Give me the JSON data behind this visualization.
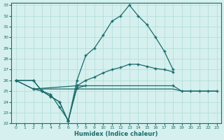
{
  "xlabel": "Humidex (Indice chaleur)",
  "xlim": [
    -0.5,
    23.5
  ],
  "ylim": [
    22,
    33.2
  ],
  "yticks": [
    22,
    23,
    24,
    25,
    26,
    27,
    28,
    29,
    30,
    31,
    32,
    33
  ],
  "xticks": [
    0,
    1,
    2,
    3,
    4,
    5,
    6,
    7,
    8,
    9,
    10,
    11,
    12,
    13,
    14,
    15,
    16,
    17,
    18,
    19,
    20,
    21,
    22,
    23
  ],
  "bg_color": "#d5f0ee",
  "grid_color": "#b0dbd8",
  "line_color": "#1a6b6b",
  "series_peak_x": [
    0,
    2,
    3,
    4,
    5,
    6,
    7,
    8,
    9,
    10,
    11,
    12,
    13,
    14,
    15,
    16,
    17,
    18
  ],
  "series_peak_y": [
    26,
    26,
    25,
    24.5,
    24,
    22.2,
    26,
    28.3,
    29,
    30.2,
    31.5,
    32,
    33,
    32,
    31.2,
    30,
    28.7,
    27
  ],
  "series_mid_x": [
    0,
    2,
    3,
    4,
    5,
    6,
    7,
    8,
    9,
    10,
    11,
    12,
    13,
    14,
    15,
    16,
    17,
    18
  ],
  "series_mid_y": [
    26,
    26,
    25,
    24.5,
    24,
    22.2,
    25.5,
    26,
    26.3,
    26.7,
    27,
    27.2,
    27.5,
    27.5,
    27.3,
    27.1,
    27,
    26.8
  ],
  "series_dip_x": [
    2,
    3,
    4,
    5,
    6,
    7,
    8
  ],
  "series_dip_y": [
    25.2,
    25,
    24.7,
    23.5,
    22.3,
    25.3,
    25.5
  ],
  "series_flat1_x": [
    0,
    2,
    18,
    19,
    20,
    21,
    22,
    23
  ],
  "series_flat1_y": [
    26,
    25.2,
    25.2,
    25,
    25,
    25,
    25,
    25
  ],
  "series_flat2_x": [
    0,
    2,
    7,
    18,
    19,
    20,
    21,
    22,
    23
  ],
  "series_flat2_y": [
    26,
    25.2,
    25.5,
    25.5,
    25,
    25,
    25,
    25,
    25
  ]
}
